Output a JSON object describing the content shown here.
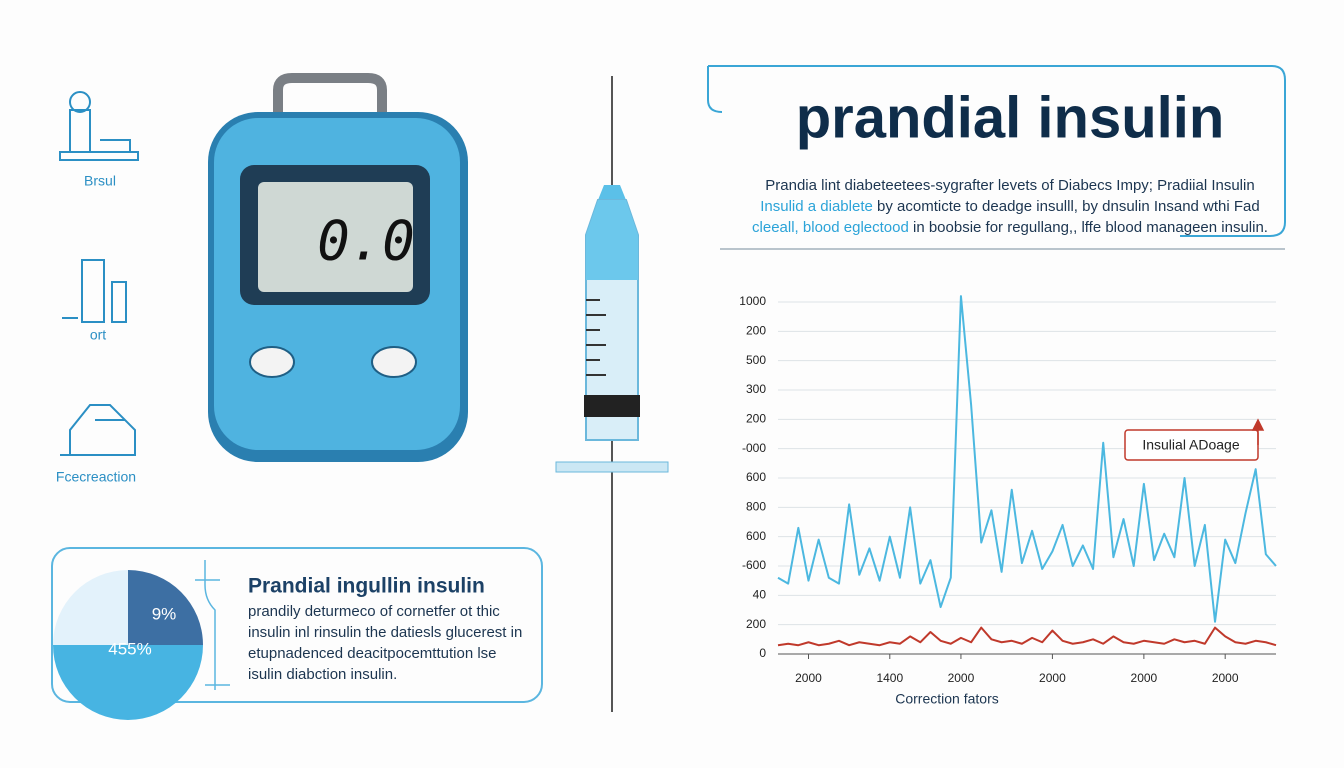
{
  "sidebar": {
    "items": [
      {
        "label": "Brsul"
      },
      {
        "label": "ort"
      },
      {
        "label": "Fcecreaction"
      }
    ]
  },
  "meter": {
    "display": "0.0"
  },
  "header": {
    "title": "prandial insulin",
    "body": [
      {
        "text": "Prandia lint diabeteetees-sygrafter levets of Diabecs Impy; Pradiial Insulin"
      },
      {
        "highlight": "Insulid a diablete",
        "text": " by acomticte to deadge insulll, by dnsulin Insand wthi Fad"
      },
      {
        "highlight": "cleeall, blood eglectood",
        "text": " in boobsie for regullang,, lffe blood manageen insulin."
      }
    ]
  },
  "pie_card": {
    "title": "Prandial ingullin insulin",
    "slice_labels": [
      "9%",
      "455%"
    ],
    "lines": [
      "prandily deturmeco of cornetfer ot thic",
      "insulin inl rinsulin the datiesls glucerest in",
      "etupnadenced deacitpocemttution lse",
      "isulin diabction insulin."
    ]
  },
  "chart_data": {
    "type": "line",
    "x_label": "Correction fators",
    "annotation": "Insulial ADoage",
    "x": [
      0,
      1,
      2,
      3,
      4,
      5,
      6,
      7,
      8,
      9,
      10,
      11,
      12,
      13,
      14,
      15,
      16,
      17,
      18,
      19,
      20,
      21,
      22,
      23,
      24,
      25,
      26,
      27,
      28,
      29,
      30,
      31,
      32,
      33,
      34,
      35,
      36,
      37,
      38,
      39,
      40,
      41,
      42,
      43,
      44,
      45,
      46,
      47,
      48,
      49
    ],
    "series": [
      {
        "color": "#4cb8e0",
        "values": [
          2.6,
          2.4,
          4.3,
          2.5,
          3.9,
          2.6,
          2.4,
          5.1,
          2.7,
          3.6,
          2.5,
          4.0,
          2.6,
          5.0,
          2.4,
          3.2,
          1.6,
          2.6,
          12.2,
          8.5,
          3.8,
          4.9,
          2.8,
          5.6,
          3.1,
          4.2,
          2.9,
          3.5,
          4.4,
          3.0,
          3.7,
          2.9,
          7.2,
          3.3,
          4.6,
          3.0,
          5.8,
          3.2,
          4.1,
          3.3,
          6.0,
          3.0,
          4.4,
          1.1,
          3.9,
          3.1,
          4.8,
          6.3,
          3.4,
          3.0
        ]
      },
      {
        "color": "#c0392b",
        "values": [
          0.3,
          0.35,
          0.3,
          0.4,
          0.3,
          0.35,
          0.45,
          0.3,
          0.4,
          0.35,
          0.3,
          0.4,
          0.35,
          0.6,
          0.4,
          0.75,
          0.45,
          0.35,
          0.55,
          0.4,
          0.9,
          0.5,
          0.4,
          0.45,
          0.35,
          0.55,
          0.4,
          0.8,
          0.45,
          0.35,
          0.4,
          0.5,
          0.35,
          0.6,
          0.4,
          0.35,
          0.45,
          0.4,
          0.35,
          0.5,
          0.4,
          0.45,
          0.35,
          0.9,
          0.6,
          0.4,
          0.35,
          0.45,
          0.4,
          0.3
        ]
      }
    ],
    "xlim": [
      0,
      49
    ],
    "xticks": [
      {
        "value": 3,
        "label": "2000"
      },
      {
        "value": 11,
        "label": "1400"
      },
      {
        "value": 18,
        "label": "2000"
      },
      {
        "value": 27,
        "label": "2000"
      },
      {
        "value": 36,
        "label": "2000"
      },
      {
        "value": 44,
        "label": "2000"
      }
    ],
    "ylim": [
      0,
      12
    ],
    "yticks": [
      {
        "value": 0,
        "label": "0"
      },
      {
        "value": 1,
        "label": "200"
      },
      {
        "value": 2,
        "label": "40"
      },
      {
        "value": 3,
        "label": "-600"
      },
      {
        "value": 4,
        "label": "600"
      },
      {
        "value": 5,
        "label": "800"
      },
      {
        "value": 6,
        "label": "600"
      },
      {
        "value": 7,
        "label": "-000"
      },
      {
        "value": 8,
        "label": "200"
      },
      {
        "value": 9,
        "label": "300"
      },
      {
        "value": 10,
        "label": "500"
      },
      {
        "value": 11,
        "label": "200"
      },
      {
        "value": 12,
        "label": "1000"
      }
    ],
    "grid": true
  }
}
